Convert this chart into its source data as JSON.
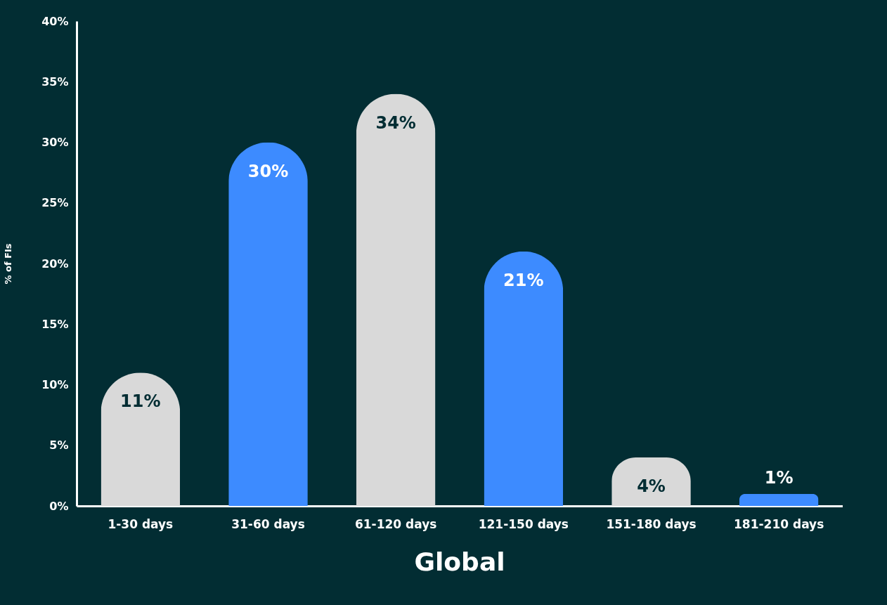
{
  "chart_data": {
    "type": "bar",
    "title": "Global",
    "ylabel": "% of FIs",
    "categories": [
      "1-30 days",
      "31-60 days",
      "61-120 days",
      "121-150 days",
      "151-180 days",
      "181-210 days"
    ],
    "values": [
      11,
      30,
      34,
      21,
      4,
      1
    ],
    "colors": [
      "#d9d9d9",
      "#3d8bff",
      "#d9d9d9",
      "#3d8bff",
      "#d9d9d9",
      "#3d8bff"
    ],
    "value_labels": [
      "11%",
      "30%",
      "34%",
      "21%",
      "4%",
      "1%"
    ],
    "ylim": [
      0,
      40
    ],
    "yticks": [
      {
        "value": 0,
        "label": "0%"
      },
      {
        "value": 5,
        "label": "5%"
      },
      {
        "value": 10,
        "label": "10%"
      },
      {
        "value": 15,
        "label": "15%"
      },
      {
        "value": 20,
        "label": "20%"
      },
      {
        "value": 25,
        "label": "25%"
      },
      {
        "value": 30,
        "label": "30%"
      },
      {
        "value": 35,
        "label": "35%"
      },
      {
        "value": 40,
        "label": "40%"
      }
    ],
    "grid": false
  }
}
